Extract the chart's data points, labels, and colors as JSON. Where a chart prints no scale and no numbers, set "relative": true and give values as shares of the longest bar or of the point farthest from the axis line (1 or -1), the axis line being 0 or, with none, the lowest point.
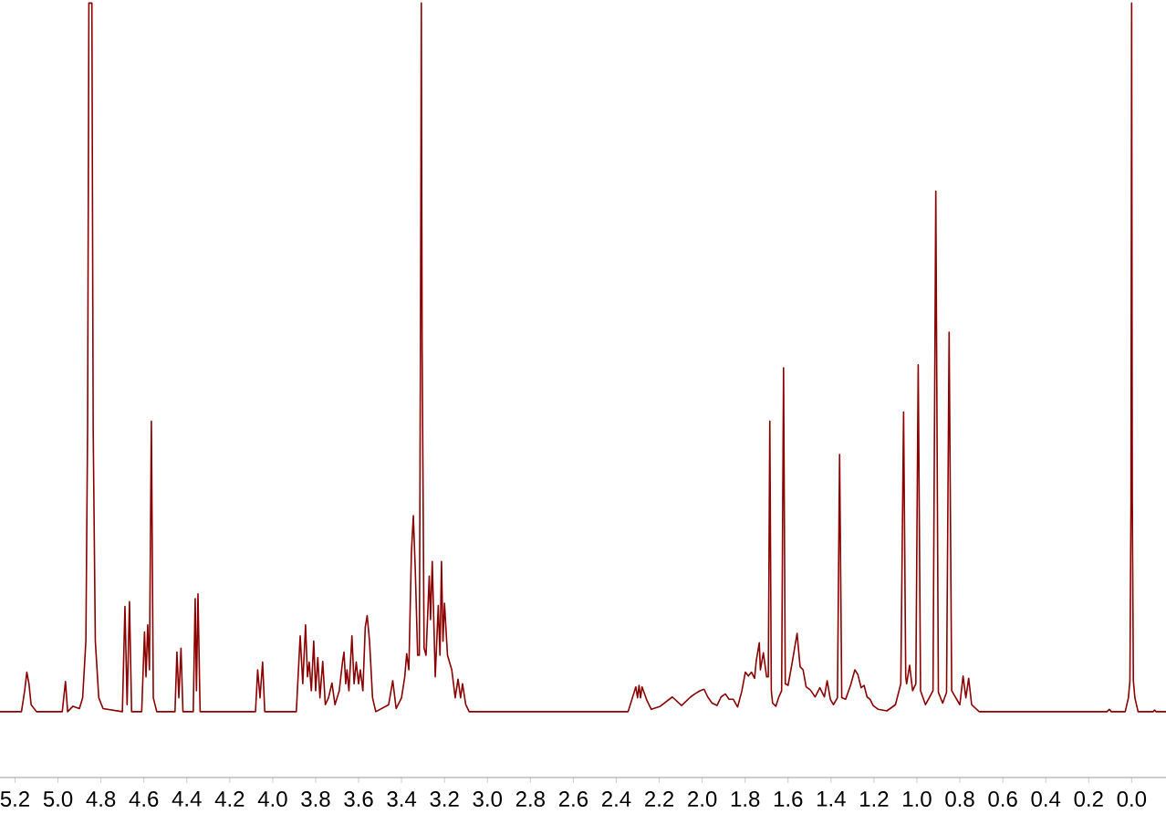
{
  "chart_data": {
    "type": "line",
    "relative": true,
    "color": "#8b0000",
    "tick_labels": "x",
    "xlim": [
      5.27,
      -0.16
    ],
    "xticks": [
      5.2,
      {
        "value": 5,
        "label": "5.0"
      },
      4.8,
      4.6,
      4.4,
      4.2,
      {
        "value": 4,
        "label": "4.0"
      },
      3.8,
      3.6,
      3.4,
      3.2,
      {
        "value": 3,
        "label": "3.0"
      },
      2.8,
      2.6,
      2.4,
      2.2,
      {
        "value": 2,
        "label": "2.0"
      },
      1.8,
      1.6,
      1.4,
      1.2,
      {
        "value": 1,
        "label": "1.0"
      },
      0.8,
      0.6,
      0.4,
      0.2,
      {
        "value": 0,
        "label": "0.0"
      }
    ],
    "x": [
      5.27,
      5.17,
      5.155,
      5.145,
      5.135,
      5.125,
      5.1,
      4.98,
      4.965,
      4.955,
      4.93,
      4.9,
      4.885,
      4.87,
      4.862,
      4.856,
      4.842,
      4.836,
      4.826,
      4.81,
      4.79,
      4.7,
      4.688,
      4.678,
      4.667,
      4.657,
      4.61,
      4.597,
      4.59,
      4.582,
      4.574,
      4.565,
      4.556,
      4.54,
      4.455,
      4.446,
      4.437,
      4.427,
      4.418,
      4.37,
      4.361,
      4.355,
      4.348,
      4.338,
      4.08,
      4.07,
      4.059,
      4.047,
      4.037,
      3.89,
      3.872,
      3.86,
      3.847,
      3.838,
      3.83,
      3.82,
      3.809,
      3.8,
      3.79,
      3.78,
      3.767,
      3.755,
      3.74,
      3.724,
      3.71,
      3.69,
      3.675,
      3.668,
      3.66,
      3.654,
      3.645,
      3.631,
      3.621,
      3.611,
      3.6,
      3.592,
      3.58,
      3.569,
      3.56,
      3.549,
      3.535,
      3.52,
      3.46,
      3.441,
      3.425,
      3.4,
      3.385,
      3.376,
      3.366,
      3.354,
      3.345,
      3.336,
      3.325,
      3.317,
      3.312,
      3.31,
      3.308,
      3.306,
      3.304,
      3.295,
      3.286,
      3.271,
      3.265,
      3.257,
      3.243,
      3.229,
      3.221,
      3.214,
      3.207,
      3.2,
      3.186,
      3.166,
      3.15,
      3.137,
      3.125,
      3.116,
      3.101,
      3.085,
      2.345,
      2.309,
      2.301,
      2.294,
      2.287,
      2.28,
      2.258,
      2.237,
      2.195,
      2.139,
      2.096,
      2.054,
      2.034,
      2.011,
      1.991,
      1.974,
      1.954,
      1.931,
      1.912,
      1.892,
      1.875,
      1.855,
      1.835,
      1.815,
      1.799,
      1.785,
      1.77,
      1.756,
      1.748,
      1.734,
      1.729,
      1.715,
      1.7,
      1.692,
      1.685,
      1.678,
      1.672,
      1.657,
      1.643,
      1.63,
      1.621,
      1.613,
      1.6,
      1.581,
      1.558,
      1.544,
      1.53,
      1.516,
      1.496,
      1.474,
      1.452,
      1.431,
      1.418,
      1.403,
      1.389,
      1.37,
      1.36,
      1.35,
      1.332,
      1.309,
      1.289,
      1.275,
      1.26,
      1.246,
      1.232,
      1.218,
      1.204,
      1.18,
      1.14,
      1.1,
      1.075,
      1.062,
      1.052,
      1.048,
      1.034,
      1.02,
      1.005,
      0.994,
      0.983,
      0.96,
      0.925,
      0.912,
      0.9,
      0.88,
      0.862,
      0.85,
      0.838,
      0.8,
      0.785,
      0.772,
      0.759,
      0.745,
      0.71,
      0.115,
      0.104,
      0.095,
      0.03,
      0.015,
      0.008,
      0.003,
      0,
      -0.003,
      -0.008,
      -0.015,
      -0.03,
      -0.1,
      -0.107,
      -0.114,
      -0.16
    ],
    "values": [
      0.085,
      0.085,
      0.112,
      0.136,
      0.121,
      0.094,
      0.085,
      0.085,
      0.124,
      0.085,
      0.092,
      0.089,
      0.103,
      0.176,
      0.451,
      1,
      1,
      0.451,
      0.176,
      0.103,
      0.089,
      0.085,
      0.221,
      0.094,
      0.227,
      0.085,
      0.085,
      0.188,
      0.13,
      0.197,
      0.139,
      0.46,
      0.103,
      0.085,
      0.085,
      0.162,
      0.103,
      0.167,
      0.085,
      0.085,
      0.231,
      0.112,
      0.237,
      0.085,
      0.085,
      0.139,
      0.103,
      0.149,
      0.085,
      0.085,
      0.183,
      0.121,
      0.197,
      0.13,
      0.149,
      0.112,
      0.176,
      0.112,
      0.155,
      0.103,
      0.15,
      0.094,
      0.103,
      0.122,
      0.094,
      0.112,
      0.149,
      0.162,
      0.121,
      0.139,
      0.112,
      0.183,
      0.121,
      0.149,
      0.121,
      0.139,
      0.112,
      0.194,
      0.209,
      0.176,
      0.103,
      0.085,
      0.094,
      0.125,
      0.089,
      0.103,
      0.13,
      0.16,
      0.139,
      0.291,
      0.338,
      0.268,
      0.158,
      0.158,
      0.551,
      0.753,
      1,
      0.753,
      0.551,
      0.167,
      0.158,
      0.26,
      0.204,
      0.279,
      0.13,
      0.222,
      0.158,
      0.279,
      0.176,
      0.225,
      0.158,
      0.139,
      0.103,
      0.127,
      0.103,
      0.121,
      0.094,
      0.085,
      0.085,
      0.117,
      0.103,
      0.119,
      0.103,
      0.117,
      0.1,
      0.088,
      0.092,
      0.104,
      0.093,
      0.104,
      0.108,
      0.112,
      0.114,
      0.104,
      0.096,
      0.093,
      0.104,
      0.108,
      0.101,
      0.101,
      0.091,
      0.112,
      0.136,
      0.131,
      0.136,
      0.128,
      0.151,
      0.174,
      0.139,
      0.161,
      0.13,
      0.13,
      0.46,
      0.112,
      0.096,
      0.092,
      0.104,
      0.112,
      0.529,
      0.121,
      0.119,
      0.148,
      0.186,
      0.143,
      0.139,
      0.117,
      0.113,
      0.104,
      0.116,
      0.104,
      0.125,
      0.101,
      0.094,
      0.103,
      0.417,
      0.103,
      0.101,
      0.119,
      0.139,
      0.133,
      0.116,
      0.119,
      0.104,
      0.101,
      0.093,
      0.088,
      0.086,
      0.094,
      0.121,
      0.472,
      0.13,
      0.121,
      0.145,
      0.112,
      0.121,
      0.533,
      0.112,
      0.094,
      0.112,
      0.757,
      0.11,
      0.096,
      0.11,
      0.575,
      0.112,
      0.094,
      0.131,
      0.103,
      0.128,
      0.094,
      0.085,
      0.085,
      0.088,
      0.085,
      0.085,
      0.103,
      0.125,
      0.359,
      1,
      0.359,
      0.125,
      0.103,
      0.085,
      0.085,
      0.087,
      0.085,
      0.085
    ]
  }
}
